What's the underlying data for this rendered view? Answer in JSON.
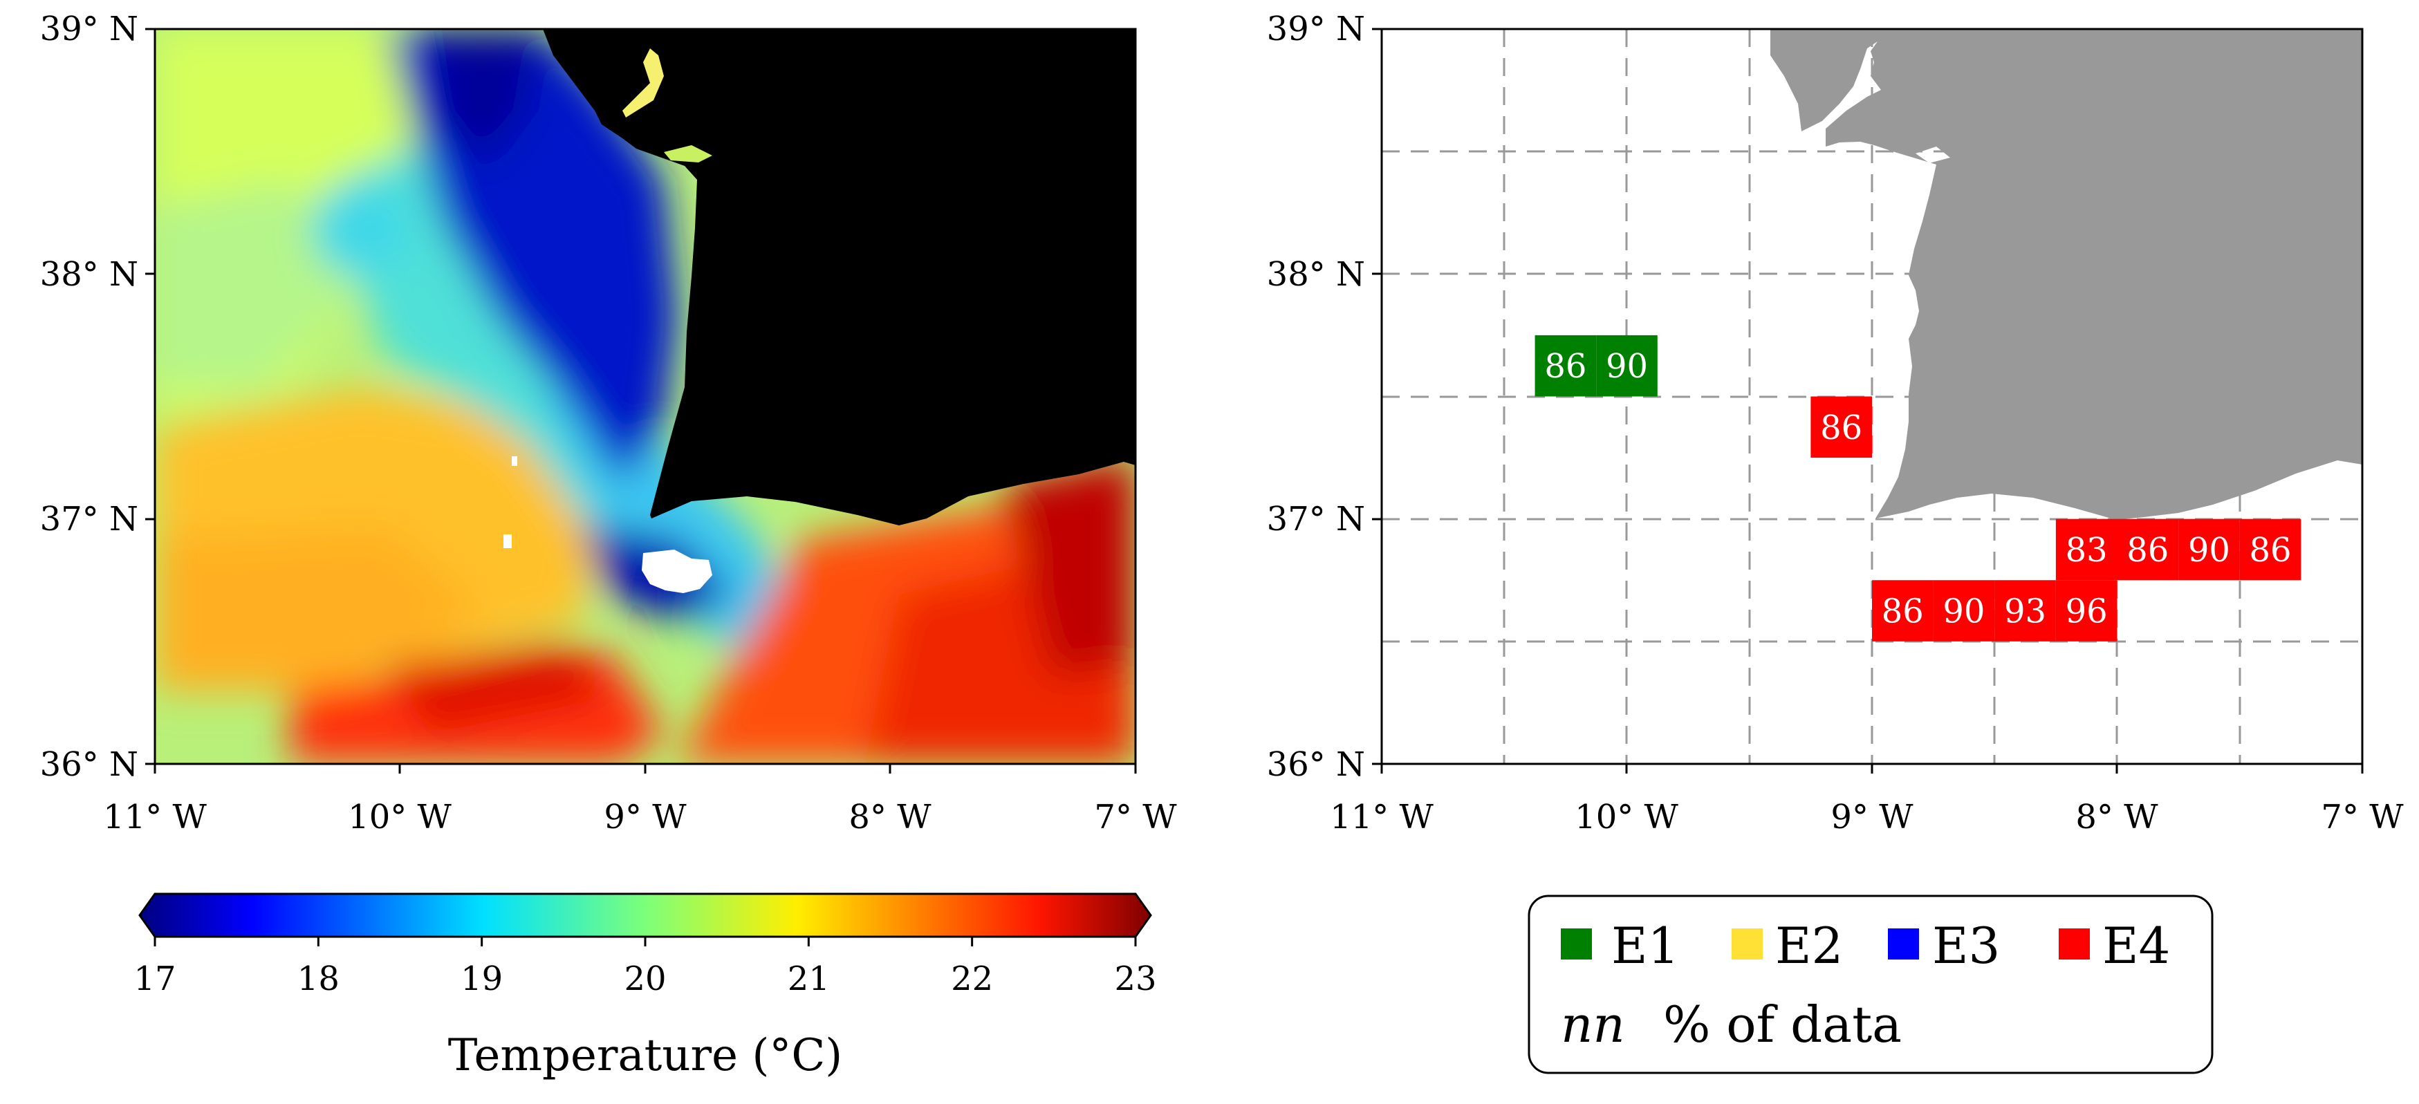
{
  "left_map": {
    "lat_ticks": [
      "39° N",
      "38° N",
      "37° N",
      "36° N"
    ],
    "lon_ticks": [
      "11° W",
      "10° W",
      "9° W",
      "8° W",
      "7° W"
    ]
  },
  "right_map": {
    "lat_ticks": [
      "39° N",
      "38° N",
      "37° N",
      "36° N"
    ],
    "lon_ticks": [
      "11° W",
      "10° W",
      "9° W",
      "8° W",
      "7° W"
    ],
    "land_color": "#999999",
    "cells": [
      {
        "lon": -10.25,
        "lat": 37.625,
        "value": "86",
        "group": "E1"
      },
      {
        "lon": -10.0,
        "lat": 37.625,
        "value": "90",
        "group": "E1"
      },
      {
        "lon": -9.125,
        "lat": 37.375,
        "value": "86",
        "group": "E4"
      },
      {
        "lon": -8.125,
        "lat": 36.875,
        "value": "83",
        "group": "E4"
      },
      {
        "lon": -7.875,
        "lat": 36.875,
        "value": "86",
        "group": "E4"
      },
      {
        "lon": -7.625,
        "lat": 36.875,
        "value": "90",
        "group": "E4"
      },
      {
        "lon": -7.375,
        "lat": 36.875,
        "value": "86",
        "group": "E4"
      },
      {
        "lon": -8.875,
        "lat": 36.625,
        "value": "86",
        "group": "E4"
      },
      {
        "lon": -8.625,
        "lat": 36.625,
        "value": "90",
        "group": "E4"
      },
      {
        "lon": -8.375,
        "lat": 36.625,
        "value": "93",
        "group": "E4"
      },
      {
        "lon": -8.125,
        "lat": 36.625,
        "value": "96",
        "group": "E4"
      }
    ]
  },
  "colorbar": {
    "ticks": [
      "17",
      "18",
      "19",
      "20",
      "21",
      "22",
      "23"
    ],
    "label": "Temperature (°C)",
    "min": 17,
    "max": 23
  },
  "legend": {
    "items": [
      {
        "label": "E1",
        "color": "#008000"
      },
      {
        "label": "E2",
        "color": "#ffe135"
      },
      {
        "label": "E3",
        "color": "#0000ff"
      },
      {
        "label": "E4",
        "color": "#ff0000"
      }
    ],
    "note_symbol": "nn",
    "note_text": "% of data"
  }
}
